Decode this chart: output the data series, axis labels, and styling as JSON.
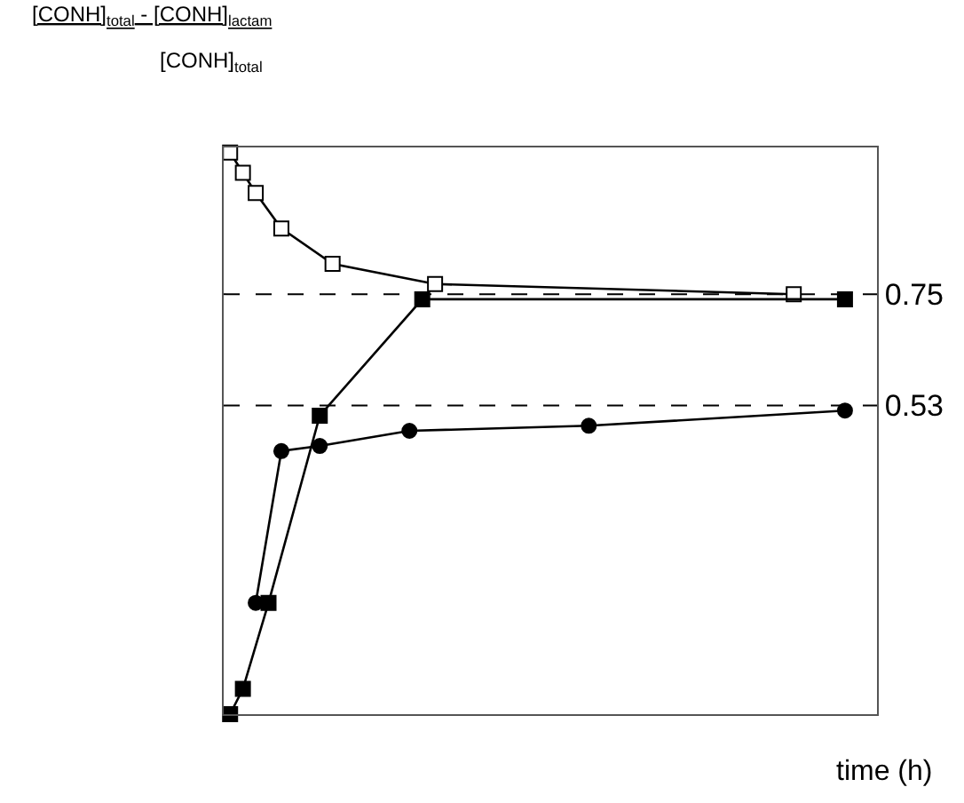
{
  "chart_data": {
    "type": "line",
    "ylabel": "[CONH]$_{total}$ - [CONH]$_{lactam}$\n[CONH]$_{total}$",
    "xlabel": "time (h)",
    "categories": [
      null,
      null,
      null,
      null,
      null,
      null,
      null,
      null,
      null,
      null,
      null,
      null,
      null,
      null,
      null,
      null,
      null,
      null,
      null,
      null,
      null,
      null,
      null,
      null,
      null,
      null,
      null,
      null,
      null,
      null,
      null,
      null,
      null,
      null,
      null,
      null,
      null,
      null,
      null,
      null,
      null,
      null,
      null,
      null,
      null,
      null,
      null,
      null,
      null,
      null,
      null
    ],
    "ylim": [
      -0.08,
      1.04
    ],
    "yticks": [
      0.53,
      0.75
    ],
    "tick_labels": "y",
    "grid": false,
    "line_style": "solid",
    "series": [
      {
        "color": "#000000",
        "marker": "circle",
        "values": [
          null,
          null,
          0.14,
          null,
          0.44,
          null,
          null,
          0.45,
          null,
          null,
          null,
          null,
          null,
          null,
          0.48,
          null,
          null,
          null,
          null,
          null,
          null,
          null,
          null,
          null,
          null,
          null,
          null,
          null,
          0.49,
          null,
          null,
          null,
          null,
          null,
          null,
          null,
          null,
          null,
          null,
          null,
          null,
          null,
          null,
          null,
          null,
          null,
          null,
          null,
          0.52,
          null,
          null
        ]
      },
      {
        "color": "#000000",
        "marker": "square-open",
        "values": [
          1.03,
          0.99,
          0.95,
          null,
          0.88,
          null,
          null,
          null,
          0.81,
          null,
          null,
          null,
          null,
          null,
          null,
          null,
          0.77,
          null,
          null,
          null,
          null,
          null,
          null,
          null,
          null,
          null,
          null,
          null,
          null,
          null,
          null,
          null,
          null,
          null,
          null,
          null,
          null,
          null,
          null,
          null,
          null,
          null,
          null,
          null,
          0.75,
          null,
          null,
          null,
          null,
          null,
          null
        ]
      },
      {
        "color": "#000000",
        "marker": "square",
        "values": [
          -0.08,
          -0.03,
          null,
          0.14,
          null,
          null,
          null,
          0.51,
          null,
          null,
          null,
          null,
          null,
          null,
          null,
          0.74,
          null,
          null,
          null,
          null,
          null,
          null,
          null,
          null,
          null,
          null,
          null,
          null,
          null,
          null,
          null,
          null,
          null,
          null,
          null,
          null,
          null,
          null,
          null,
          null,
          null,
          null,
          null,
          null,
          null,
          null,
          null,
          null,
          0.74,
          null,
          null
        ]
      }
    ],
    "ref_lines": [
      {
        "axis": "y",
        "value": 0.75,
        "color": "#000000",
        "line_style": "dashed"
      },
      {
        "axis": "y",
        "value": 0.53,
        "color": "#000000",
        "line_style": "dashed"
      }
    ]
  }
}
